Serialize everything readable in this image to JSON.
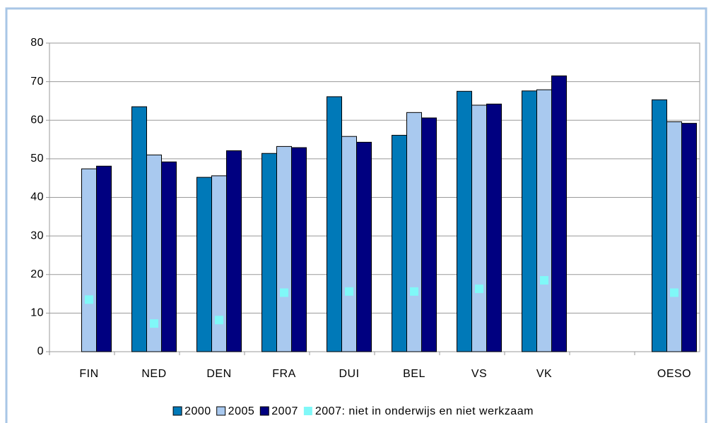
{
  "chart_data": {
    "type": "bar",
    "categories": [
      "FIN",
      "NED",
      "DEN",
      "FRA",
      "DUI",
      "BEL",
      "VS",
      "VK",
      null,
      "OESO"
    ],
    "series": [
      {
        "name": "2000",
        "color": "#0079b8",
        "mark": "bar",
        "values": [
          null,
          63.5,
          45.2,
          51.4,
          66.1,
          56.1,
          67.5,
          67.6,
          null,
          65.3
        ]
      },
      {
        "name": "2005",
        "color": "#a9c9ef",
        "mark": "bar",
        "values": [
          47.4,
          51.0,
          45.6,
          53.2,
          55.8,
          62.0,
          63.9,
          67.9,
          null,
          59.6
        ]
      },
      {
        "name": "2007",
        "color": "#000080",
        "mark": "bar",
        "values": [
          48.1,
          49.2,
          52.1,
          52.9,
          54.3,
          60.6,
          64.2,
          71.5,
          null,
          59.2
        ]
      },
      {
        "name": "2007: niet in onderwijs en niet werkzaam",
        "color": "#80f8f8",
        "mark": "square",
        "values": [
          13.5,
          7.3,
          8.2,
          15.3,
          15.6,
          15.6,
          16.3,
          18.5,
          null,
          15.3
        ]
      }
    ],
    "ylim": [
      0,
      80
    ],
    "yticks": [
      0,
      10,
      20,
      30,
      40,
      50,
      60,
      70,
      80
    ],
    "grid": true,
    "legend": "bottom"
  }
}
